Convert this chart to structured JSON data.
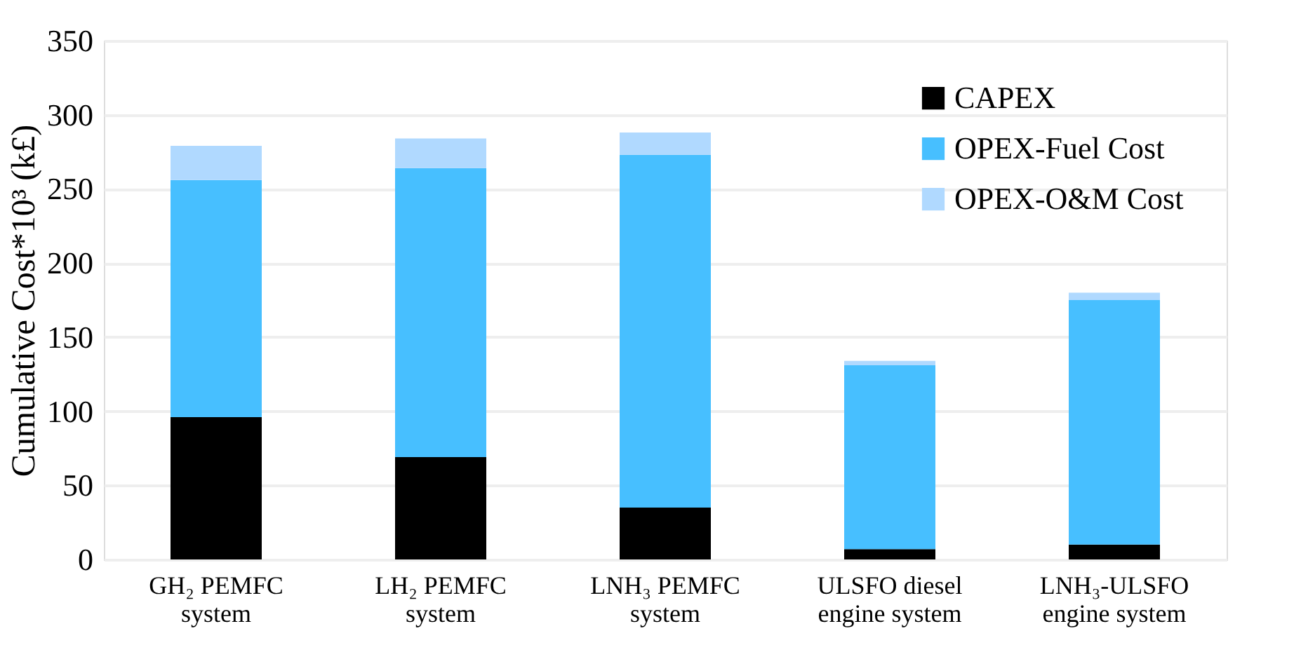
{
  "chart_data": {
    "type": "bar",
    "stacked": true,
    "ylabel": "Cumulative Cost*10³ (k£)",
    "categories": [
      "GH₂ PEMFC\nsystem",
      "LH₂ PEMFC\nsystem",
      "LNH₃ PEMFC\nsystem",
      "ULSFO diesel\nengine system",
      "LNH₃-ULSFO\nengine system"
    ],
    "series": [
      {
        "name": "CAPEX",
        "color": "#000000",
        "values": [
          96,
          69,
          35,
          7,
          10
        ]
      },
      {
        "name": "OPEX-Fuel Cost",
        "color": "#47bfff",
        "values": [
          160,
          195,
          238,
          124,
          165
        ]
      },
      {
        "name": "OPEX-O&M Cost",
        "color": "#b0d9ff",
        "values": [
          23,
          20,
          15,
          3,
          5
        ]
      }
    ],
    "ylim": [
      0,
      350
    ],
    "yticks": [
      0,
      50,
      100,
      150,
      200,
      250,
      300,
      350
    ],
    "grid": "y",
    "legend": "top right"
  }
}
